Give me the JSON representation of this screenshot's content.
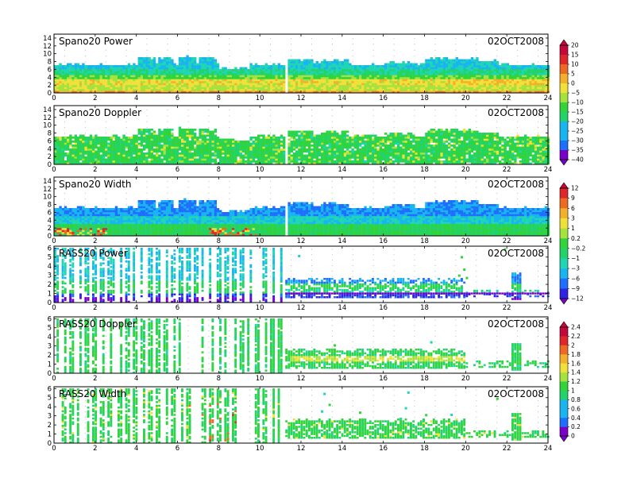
{
  "chart_data": {
    "type": "heatmap",
    "x_ticks": [
      "0",
      "2",
      "4",
      "6",
      "8",
      "10",
      "12",
      "14",
      "16",
      "18",
      "20",
      "22",
      "24"
    ],
    "xlim": [
      0,
      24
    ],
    "colors": {
      "spectrum": [
        "#7a00c8",
        "#2f24e6",
        "#1f6fff",
        "#18b5f0",
        "#1fd6b4",
        "#22d36a",
        "#31d43a",
        "#a6e23e",
        "#f0e13a",
        "#f4b02c",
        "#ee6a22",
        "#e0262a",
        "#c4083c"
      ],
      "frame": "#000000",
      "dots": "#b8b8b8"
    },
    "panels": [
      {
        "title": "Spano20 Power",
        "date": "02OCT2008",
        "kind": "spano",
        "field": "power",
        "y_ticks": [
          "0",
          "2",
          "4",
          "6",
          "8",
          "10",
          "12",
          "14"
        ],
        "ylim": [
          0,
          15
        ]
      },
      {
        "title": "Spano20 Doppler",
        "date": "02OCT2008",
        "kind": "spano",
        "field": "doppler",
        "y_ticks": [
          "0",
          "2",
          "4",
          "6",
          "8",
          "10",
          "12",
          "14"
        ],
        "ylim": [
          0,
          15
        ]
      },
      {
        "title": "Spano20 Width",
        "date": "02OCT2008",
        "kind": "spano",
        "field": "width",
        "y_ticks": [
          "0",
          "2",
          "4",
          "6",
          "8",
          "10",
          "12",
          "14"
        ],
        "ylim": [
          0,
          15
        ]
      },
      {
        "title": "RASS20 Power",
        "date": "02OCT2008",
        "kind": "rass",
        "field": "power",
        "y_ticks": [
          "0",
          "1",
          "2",
          "3",
          "4",
          "5",
          "6"
        ],
        "ylim": [
          0,
          6.2
        ]
      },
      {
        "title": "RASS20 Doppler",
        "date": "02OCT2008",
        "kind": "rass",
        "field": "doppler",
        "y_ticks": [
          "0",
          "1",
          "2",
          "3",
          "4",
          "5",
          "6"
        ],
        "ylim": [
          0,
          6.2
        ]
      },
      {
        "title": "RASS20 Width",
        "date": "02OCT2008",
        "kind": "rass",
        "field": "width",
        "y_ticks": [
          "0",
          "1",
          "2",
          "3",
          "4",
          "5",
          "6"
        ],
        "ylim": [
          0,
          6.2
        ]
      }
    ],
    "colorbars": [
      {
        "labels": [
          "20",
          "15",
          "10",
          "5",
          "0",
          "−5",
          "−10",
          "−15",
          "−20",
          "−25",
          "−30",
          "−35",
          "−40"
        ]
      },
      {
        "labels": [
          "12",
          "9",
          "6",
          "3",
          "1",
          "0.2",
          "−0.2",
          "−1",
          "−3",
          "−6",
          "−9",
          "−12"
        ]
      },
      {
        "labels": [
          "2.4",
          "2.2",
          "2",
          "1.8",
          "1.6",
          "1.4",
          "1.2",
          "1",
          "0.8",
          "0.6",
          "0.4",
          "0.2",
          "0"
        ]
      }
    ]
  }
}
